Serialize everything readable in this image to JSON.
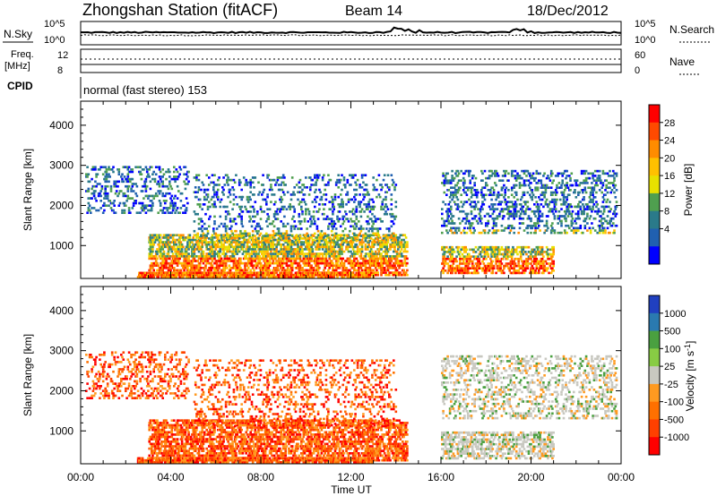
{
  "header": {
    "station_title": "Zhongshan Station (fitACF)",
    "beam": "Beam 14",
    "date": "18/Dec/2012"
  },
  "noise_panel": {
    "left_label": "N.Sky",
    "left_ticks": [
      "10^5",
      "10^0"
    ],
    "right_label": "N.Search",
    "right_ticks": [
      "10^5",
      "10^0"
    ]
  },
  "freq_panel": {
    "left_label_line1": "Freq.",
    "left_label_line2": "[MHz]",
    "left_ticks": [
      "12",
      "8"
    ],
    "right_label": "Nave",
    "right_ticks": [
      "60",
      "0"
    ]
  },
  "cpid_panel": {
    "label": "CPID",
    "mode_text": "normal (fast stereo) 153"
  },
  "chart_data": [
    {
      "type": "heatmap",
      "title": "",
      "ylabel": "Slant Range [km]",
      "ylim": [
        180,
        4600
      ],
      "yticks": [
        "4000",
        "3000",
        "2000",
        "1000"
      ],
      "xticks": [
        "00:00",
        "04:00",
        "08:00",
        "12:00",
        "16:00",
        "20:00",
        "00:00"
      ],
      "colorbar": {
        "label": "Power [dB]",
        "ticks": [
          "28",
          "24",
          "20",
          "16",
          "12",
          "8",
          "4"
        ],
        "colors": [
          "#ff0000",
          "#ff4a00",
          "#ff8c00",
          "#ffc000",
          "#e8e000",
          "#4f9f4f",
          "#2a7a8a",
          "#2060b0",
          "#0000ff"
        ]
      }
    },
    {
      "type": "heatmap",
      "title": "",
      "ylabel": "Slant Range [km]",
      "ylim": [
        180,
        4600
      ],
      "yticks": [
        "4000",
        "3000",
        "2000",
        "1000"
      ],
      "xticks": [
        "00:00",
        "04:00",
        "08:00",
        "12:00",
        "16:00",
        "20:00",
        "00:00"
      ],
      "xlabel": "Time UT",
      "colorbar": {
        "label": "Velocity [m s",
        "label_sup": "-1",
        "label_end": "]",
        "ticks": [
          "1000",
          "500",
          "100",
          "25",
          "-25",
          "-100",
          "-500",
          "-1000"
        ],
        "colors": [
          "#2040c0",
          "#2a7ab0",
          "#4aa040",
          "#88cc44",
          "#c8c8c0",
          "#ff9a20",
          "#ff7000",
          "#ff4000",
          "#ff0000"
        ]
      }
    }
  ]
}
